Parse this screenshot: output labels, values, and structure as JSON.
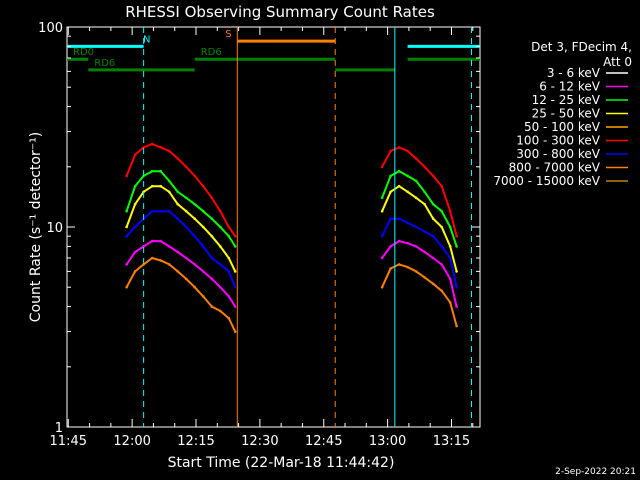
{
  "chart_data": {
    "type": "line",
    "title": "RHESSI Observing Summary Count Rates",
    "xlabel": "Start Time (22-Mar-18 11:44:42)",
    "ylabel": "Count Rate (s⁻¹ detector⁻¹)",
    "yscale": "log",
    "ylim": [
      1,
      100
    ],
    "xlim_minutes": [
      0,
      97
    ],
    "x_tick_labels": [
      "11:45",
      "12:00",
      "12:15",
      "12:30",
      "12:45",
      "13:00",
      "13:15"
    ],
    "y_tick_labels": [
      "1",
      "10",
      "100"
    ],
    "legend": {
      "header": [
        "Det 3, FDecim 4,",
        "Att 0"
      ],
      "placement": "right",
      "entries": [
        {
          "label": "3 - 6 keV",
          "color": "#ffffff"
        },
        {
          "label": "6 - 12 keV",
          "color": "#ff00ff"
        },
        {
          "label": "12 - 25 keV",
          "color": "#00ff00"
        },
        {
          "label": "25 - 50 keV",
          "color": "#ffff00"
        },
        {
          "label": "50 - 100 keV",
          "color": "#ffa500"
        },
        {
          "label": "100 - 300 keV",
          "color": "#ff0000"
        },
        {
          "label": "300 - 800 keV",
          "color": "#0000ff"
        },
        {
          "label": "800 - 7000 keV",
          "color": "#ff8000"
        },
        {
          "label": "7000 - 15000 keV",
          "color": "#b8860b"
        }
      ]
    },
    "series": [
      {
        "name": "12 - 25 keV",
        "color": "#00ff00",
        "segments": [
          {
            "x": [
              14,
              16,
              18,
              20,
              22,
              24,
              26,
              28,
              30,
              32,
              34,
              36,
              38,
              39.5
            ],
            "y": [
              12,
              16,
              18,
              19,
              19,
              17,
              15,
              14,
              13,
              12,
              11,
              10,
              9,
              8
            ]
          },
          {
            "x": [
              74,
              76,
              78,
              80,
              82,
              84,
              86,
              88,
              90,
              91.5
            ],
            "y": [
              14,
              18,
              19,
              18,
              17,
              15,
              13,
              12,
              10,
              8
            ]
          }
        ]
      },
      {
        "name": "25 - 50 keV",
        "color": "#ffff00",
        "segments": [
          {
            "x": [
              14,
              16,
              18,
              20,
              22,
              24,
              26,
              28,
              30,
              32,
              34,
              36,
              38,
              39.5
            ],
            "y": [
              10,
              13,
              15,
              16,
              16,
              15,
              13,
              12,
              11,
              10,
              9,
              8,
              7,
              6
            ]
          },
          {
            "x": [
              74,
              76,
              78,
              80,
              82,
              84,
              86,
              88,
              90,
              91.5
            ],
            "y": [
              12,
              15,
              16,
              15,
              14,
              13,
              11,
              10,
              8,
              6
            ]
          }
        ]
      },
      {
        "name": "100 - 300 keV",
        "color": "#ff0000",
        "segments": [
          {
            "x": [
              14,
              16,
              18,
              20,
              22,
              24,
              26,
              28,
              30,
              32,
              34,
              36,
              38,
              39.5
            ],
            "y": [
              18,
              23,
              25,
              26,
              25,
              24,
              22,
              20,
              18,
              16,
              14,
              12,
              10,
              9
            ]
          },
          {
            "x": [
              74,
              76,
              78,
              80,
              82,
              84,
              86,
              88,
              90,
              91.5
            ],
            "y": [
              20,
              24,
              25,
              24,
              22,
              20,
              18,
              16,
              12,
              9
            ]
          }
        ]
      },
      {
        "name": "300 - 800 keV",
        "color": "#0000ff",
        "segments": [
          {
            "x": [
              14,
              16,
              18,
              20,
              22,
              24,
              26,
              28,
              30,
              32,
              34,
              36,
              38,
              39.5
            ],
            "y": [
              9,
              10,
              11,
              12,
              12,
              12,
              11,
              10,
              9,
              8,
              7,
              6.5,
              6,
              5
            ]
          },
          {
            "x": [
              74,
              76,
              78,
              80,
              82,
              84,
              86,
              88,
              90,
              91.5
            ],
            "y": [
              9,
              11,
              11,
              10.5,
              10,
              9.5,
              9,
              8,
              7,
              5
            ]
          }
        ]
      },
      {
        "name": "6 - 12 keV",
        "color": "#ff00ff",
        "segments": [
          {
            "x": [
              14,
              16,
              18,
              20,
              22,
              24,
              26,
              28,
              30,
              32,
              34,
              36,
              38,
              39.5
            ],
            "y": [
              6.5,
              7.5,
              8,
              8.5,
              8.5,
              8,
              7.5,
              7,
              6.5,
              6,
              5.5,
              5,
              4.5,
              4
            ]
          },
          {
            "x": [
              74,
              76,
              78,
              80,
              82,
              84,
              86,
              88,
              90,
              91.5
            ],
            "y": [
              7,
              8,
              8.5,
              8.3,
              8,
              7.5,
              7,
              6.5,
              5.5,
              4
            ]
          }
        ]
      },
      {
        "name": "800 - 7000 keV",
        "color": "#ff8000",
        "segments": [
          {
            "x": [
              14,
              16,
              18,
              20,
              22,
              24,
              26,
              28,
              30,
              32,
              34,
              36,
              38,
              39.5
            ],
            "y": [
              5,
              6,
              6.5,
              7,
              6.8,
              6.5,
              6,
              5.5,
              5,
              4.5,
              4,
              3.8,
              3.5,
              3
            ]
          },
          {
            "x": [
              74,
              76,
              78,
              80,
              82,
              84,
              86,
              88,
              90,
              91.5
            ],
            "y": [
              5,
              6.2,
              6.5,
              6.3,
              6,
              5.6,
              5.2,
              4.8,
              4.2,
              3.2
            ]
          }
        ]
      }
    ],
    "status_bars": [
      {
        "label": "N",
        "color": "#00ffff",
        "level": 80,
        "segments": [
          [
            0,
            18
          ],
          [
            80,
            97
          ]
        ]
      },
      {
        "label": "S",
        "color": "#ff8000",
        "level": 85,
        "segments": [
          [
            40,
            63
          ]
        ]
      },
      {
        "label": "RD0",
        "color": "#008000",
        "level": 69,
        "segments": [
          [
            0,
            5
          ]
        ]
      },
      {
        "label": "RD6",
        "color": "#008000",
        "level": 69,
        "segments": [
          [
            30,
            63
          ],
          [
            80,
            97
          ]
        ]
      },
      {
        "label": "RD6",
        "color": "#008000",
        "level": 61,
        "segments": [
          [
            5,
            30
          ],
          [
            63,
            77
          ]
        ]
      }
    ],
    "markers": [
      {
        "x": 18,
        "color": "#00ffff",
        "style": "dashed"
      },
      {
        "x": 40,
        "color": "#ff8000",
        "style": "solid"
      },
      {
        "x": 63,
        "color": "#ff8000",
        "style": "dashed"
      },
      {
        "x": 77,
        "color": "#00ffff",
        "style": "solid"
      },
      {
        "x": 95,
        "color": "#00ffff",
        "style": "dashed"
      }
    ],
    "grid": false
  },
  "footer": {
    "date_stamp": "2-Sep-2022 20:21"
  }
}
